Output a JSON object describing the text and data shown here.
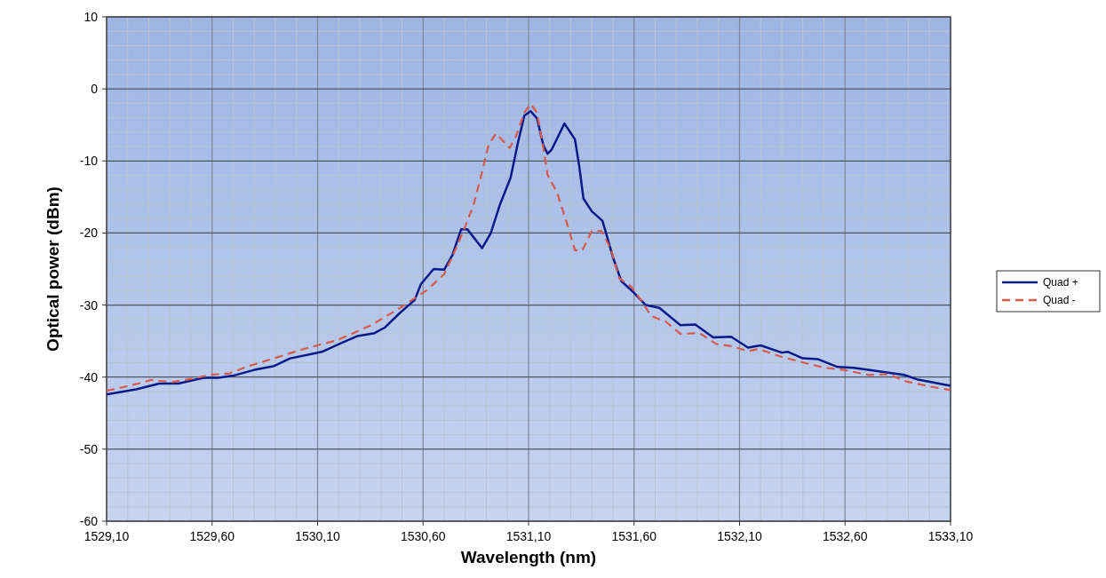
{
  "chart_data": {
    "type": "line",
    "xlabel": "Wavelength  (nm)",
    "ylabel": "Optical power (dBm)",
    "xlim": [
      1529.1,
      1533.1
    ],
    "xticks": [
      {
        "value": 1529.1,
        "label": "1529,10"
      },
      {
        "value": 1529.6,
        "label": "1529,60"
      },
      {
        "value": 1530.1,
        "label": "1530,10"
      },
      {
        "value": 1530.6,
        "label": "1530,60"
      },
      {
        "value": 1531.1,
        "label": "1531,10"
      },
      {
        "value": 1531.6,
        "label": "1531,60"
      },
      {
        "value": 1532.1,
        "label": "1532,10"
      },
      {
        "value": 1532.6,
        "label": "1532,60"
      },
      {
        "value": 1533.1,
        "label": "1533,10"
      }
    ],
    "ylim": [
      -60,
      10
    ],
    "yticks": [
      -60,
      -50,
      -40,
      -30,
      -20,
      -10,
      0,
      10
    ],
    "grid": true,
    "legend": "right",
    "series": [
      {
        "name": "Quad +",
        "color": "#0b1a8a",
        "line_style": "solid",
        "x": [
          1529.1,
          1529.24,
          1529.35,
          1529.44,
          1529.56,
          1529.63,
          1529.7,
          1529.8,
          1529.89,
          1529.97,
          1530.07,
          1530.12,
          1530.21,
          1530.29,
          1530.37,
          1530.42,
          1530.49,
          1530.56,
          1530.59,
          1530.65,
          1530.7,
          1530.74,
          1530.78,
          1530.81,
          1530.88,
          1530.92,
          1530.965,
          1531.015,
          1531.05,
          1531.08,
          1531.11,
          1531.14,
          1531.17,
          1531.19,
          1531.21,
          1531.27,
          1531.32,
          1531.34,
          1531.36,
          1531.4,
          1531.45,
          1531.47,
          1531.5,
          1531.54,
          1531.6,
          1531.655,
          1531.72,
          1531.82,
          1531.89,
          1531.975,
          1532.06,
          1532.14,
          1532.2,
          1532.3,
          1532.33,
          1532.4,
          1532.47,
          1532.565,
          1532.64,
          1532.71,
          1532.88,
          1532.94,
          1533.1
        ],
        "values": [
          -42.4,
          -41.7,
          -40.9,
          -40.9,
          -40.1,
          -40.1,
          -39.8,
          -39.0,
          -38.5,
          -37.4,
          -36.8,
          -36.5,
          -35.3,
          -34.3,
          -33.9,
          -33.1,
          -31.1,
          -29.3,
          -27.1,
          -25.0,
          -25.1,
          -23.0,
          -19.5,
          -19.5,
          -22.1,
          -20.1,
          -16.0,
          -12.3,
          -7.4,
          -3.7,
          -3.1,
          -4.1,
          -7.8,
          -9.0,
          -8.4,
          -4.8,
          -7.0,
          -10.7,
          -15.2,
          -17.0,
          -18.3,
          -20.3,
          -23.4,
          -26.7,
          -28.3,
          -30.0,
          -30.4,
          -32.8,
          -32.7,
          -34.5,
          -34.4,
          -35.9,
          -35.6,
          -36.6,
          -36.5,
          -37.4,
          -37.5,
          -38.6,
          -38.7,
          -39.0,
          -39.7,
          -40.3,
          -41.2
        ]
      },
      {
        "name": "Quad -",
        "color": "#d65a4e",
        "line_style": "dashed",
        "x": [
          1529.1,
          1529.21,
          1529.31,
          1529.41,
          1529.51,
          1529.59,
          1529.68,
          1529.77,
          1529.86,
          1530.0,
          1530.11,
          1530.19,
          1530.27,
          1530.36,
          1530.49,
          1530.62,
          1530.7,
          1530.755,
          1530.8,
          1530.84,
          1530.88,
          1530.91,
          1530.945,
          1530.985,
          1531.01,
          1531.04,
          1531.08,
          1531.11,
          1531.14,
          1531.17,
          1531.19,
          1531.235,
          1531.28,
          1531.32,
          1531.355,
          1531.4,
          1531.445,
          1531.49,
          1531.53,
          1531.585,
          1531.64,
          1531.68,
          1531.75,
          1531.82,
          1531.91,
          1531.99,
          1532.06,
          1532.14,
          1532.19,
          1532.3,
          1532.38,
          1532.5,
          1532.595,
          1532.71,
          1532.805,
          1532.89,
          1533.0,
          1533.1
        ],
        "values": [
          -41.9,
          -41.2,
          -40.4,
          -40.7,
          -40.2,
          -39.7,
          -39.5,
          -38.5,
          -37.7,
          -36.4,
          -35.5,
          -34.9,
          -33.9,
          -32.7,
          -30.4,
          -27.9,
          -25.7,
          -22.2,
          -19.1,
          -16.0,
          -11.5,
          -7.8,
          -6.2,
          -7.4,
          -8.2,
          -6.6,
          -3.3,
          -2.1,
          -3.3,
          -8.2,
          -11.9,
          -14.4,
          -18.5,
          -22.4,
          -22.4,
          -19.7,
          -19.7,
          -22.2,
          -26.3,
          -27.4,
          -29.6,
          -31.5,
          -32.3,
          -34.0,
          -33.9,
          -35.4,
          -35.7,
          -36.4,
          -36.1,
          -37.2,
          -37.8,
          -38.7,
          -39.0,
          -39.7,
          -39.6,
          -40.6,
          -41.3,
          -41.8
        ]
      }
    ]
  }
}
